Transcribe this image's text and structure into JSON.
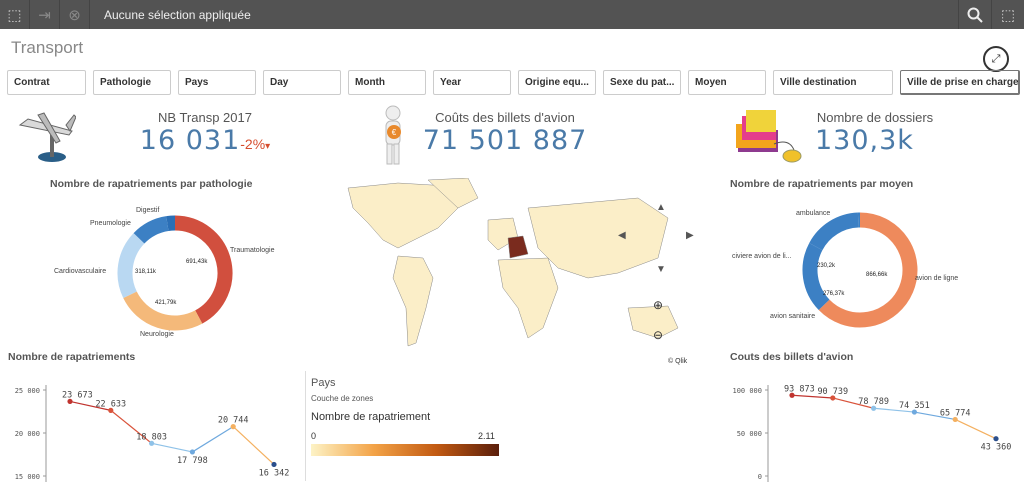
{
  "toolbar": {
    "selection_text": "Aucune sélection appliquée"
  },
  "sheet": {
    "title": "Transport"
  },
  "filters": [
    "Contrat",
    "Pathologie",
    "Pays",
    "Day",
    "Month",
    "Year",
    "Origine equ...",
    "Sexe du pat...",
    "Moyen",
    "Ville destination",
    "Ville de prise en charge"
  ],
  "kpi": {
    "nb": {
      "label": "NB Transp 2017",
      "value": "16 031",
      "delta": "-2%"
    },
    "cost": {
      "label": "Coûts des billets d'avion",
      "value": "71 501 887"
    },
    "dossiers": {
      "label": "Nombre de dossiers",
      "value": "130,3k"
    }
  },
  "donut_pathologie": {
    "title": "Nombre de rapatriements par pathologie",
    "labels": [
      "Digestif",
      "Pneumologie",
      "Traumatologie",
      "Cardiovasculaire",
      "Neurologie"
    ],
    "value_labels": [
      "691,43k",
      "318,11k",
      "421,79k"
    ]
  },
  "donut_moyen": {
    "title": "Nombre de rapatriements par moyen",
    "labels": [
      "ambulance",
      "civiere avion de li...",
      "avion de ligne",
      "avion sanitaire"
    ],
    "value_labels": [
      "866,66k",
      "230,2k",
      "276,37k"
    ]
  },
  "map": {
    "credit": "© Qlik"
  },
  "map_legend": {
    "title": "Pays",
    "subtitle": "Couche de zones",
    "measure": "Nombre de rapatriement",
    "min": "0",
    "max": "2.11"
  },
  "line_left": {
    "title": "Nombre de rapatriements",
    "yticks": [
      "25 000",
      "20 000",
      "15 000"
    ],
    "point_labels": [
      "23 673",
      "22 633",
      "18 803",
      "17 798",
      "20 744",
      "16 342"
    ]
  },
  "line_right": {
    "title": "Couts des billets d'avion",
    "yticks": [
      "100 000",
      "50 000",
      "0"
    ],
    "point_labels": [
      "93 873",
      "90 739",
      "78 789",
      "74 351",
      "65 774",
      "43 360"
    ]
  },
  "chart_data": [
    {
      "type": "pie",
      "title": "Nombre de rapatriements par pathologie",
      "categories": [
        "Traumatologie",
        "Neurologie",
        "Cardiovasculaire",
        "Pneumologie",
        "Digestif"
      ],
      "values": [
        691.43,
        421.79,
        318.11,
        170,
        40
      ],
      "colors": [
        "#d14f3e",
        "#f4b97a",
        "#b9d8f2",
        "#3c80c4",
        "#2b6fb6"
      ]
    },
    {
      "type": "pie",
      "title": "Nombre de rapatriements par moyen",
      "categories": [
        "avion de ligne",
        "avion sanitaire",
        "civiere avion de li...",
        "ambulance"
      ],
      "values": [
        866.66,
        276.37,
        230.2,
        8
      ],
      "colors": [
        "#ee8a5c",
        "#3c80c4",
        "#3c80c4",
        "#3c80c4"
      ]
    },
    {
      "type": "line",
      "title": "Nombre de rapatriements",
      "values": [
        23673,
        22633,
        18803,
        17798,
        20744,
        16342
      ],
      "ylim": [
        15000,
        25000
      ]
    },
    {
      "type": "line",
      "title": "Couts des billets d'avion",
      "values": [
        93873,
        90739,
        78789,
        74351,
        65774,
        43360
      ],
      "ylim": [
        0,
        100000
      ]
    }
  ]
}
